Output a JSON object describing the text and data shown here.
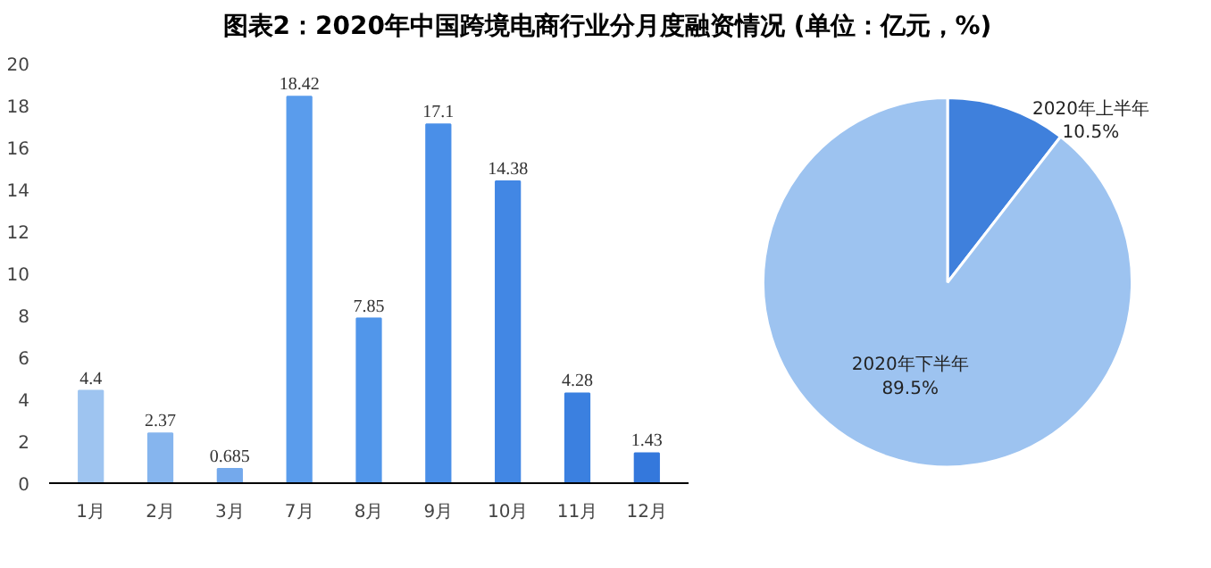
{
  "chart_data": [
    {
      "type": "bar",
      "title": "图表2：2020年中国跨境电商行业分月度融资情况 (单位：亿元，%)",
      "categories": [
        "1月",
        "2月",
        "3月",
        "7月",
        "8月",
        "9月",
        "10月",
        "11月",
        "12月"
      ],
      "values": [
        4.4,
        2.37,
        0.685,
        18.42,
        7.85,
        17.1,
        14.38,
        4.28,
        1.43
      ],
      "colors": [
        "#9ec4f0",
        "#86b5ee",
        "#74a9ec",
        "#5a9cec",
        "#5196ea",
        "#4a8fe8",
        "#4287e4",
        "#3b80e0",
        "#3478dc"
      ],
      "ylim": [
        0,
        20
      ],
      "yticks": [
        0,
        2,
        4,
        6,
        8,
        10,
        12,
        14,
        16,
        18,
        20
      ],
      "data_labels": true,
      "grid": false
    },
    {
      "type": "pie",
      "categories": [
        "2020年上半年",
        "2020年下半年"
      ],
      "values": [
        10.5,
        89.5
      ],
      "colors": [
        "#3f80dc",
        "#9dc3f0"
      ],
      "value_labels": [
        "10.5%",
        "89.5%"
      ]
    }
  ]
}
